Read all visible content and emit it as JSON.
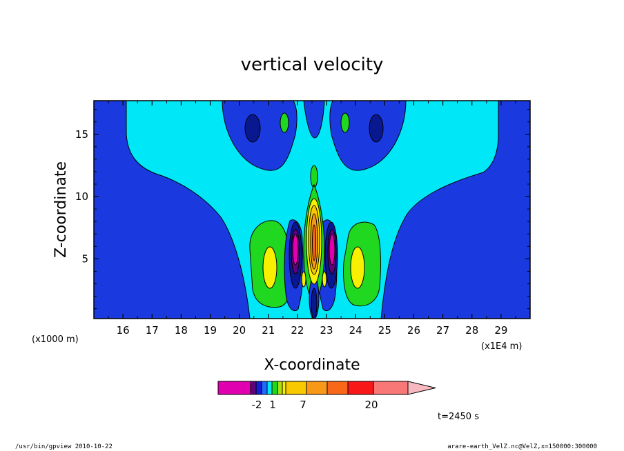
{
  "footer": {
    "left": "/usr/bin/gpview   2010-10-22",
    "right": "arare-earth_VelZ.nc@VelZ,x=150000:300000"
  },
  "time_label": "t=2450 s",
  "chart_data": {
    "type": "heatmap",
    "title": "vertical velocity",
    "xlabel": "X-coordinate",
    "ylabel": "Z-coordinate",
    "x_unit_label": "(x1E4 m)",
    "y_unit_label": "(x1000 m)",
    "xlim": [
      15,
      30
    ],
    "ylim": [
      0.2,
      17.7
    ],
    "x_ticks": [
      16,
      17,
      18,
      19,
      20,
      21,
      22,
      23,
      24,
      25,
      26,
      27,
      28,
      29
    ],
    "y_ticks": [
      5,
      10,
      15
    ],
    "colorbar": {
      "colors": [
        "#e000b0",
        "#60007a",
        "#1a1ad0",
        "#1b6bff",
        "#00e8f8",
        "#20d820",
        "#a8e010",
        "#f8f000",
        "#f8c800",
        "#f89818",
        "#f86818",
        "#f81818",
        "#f87878",
        "#f8b8c0"
      ],
      "tick_labels": [
        "-2",
        "1",
        "7",
        "20"
      ],
      "extend": "max"
    }
  }
}
